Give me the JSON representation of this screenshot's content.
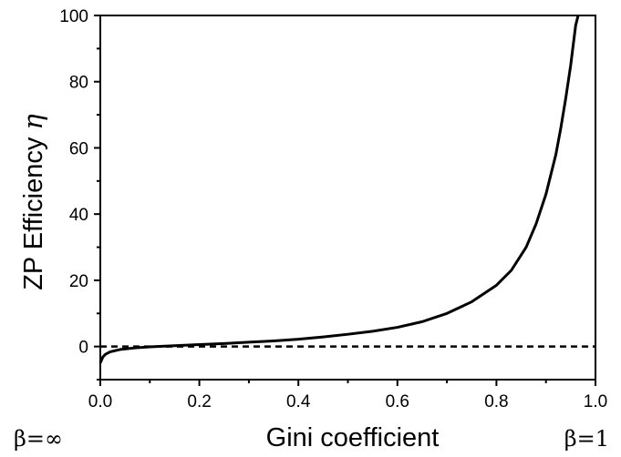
{
  "chart_data": {
    "type": "line",
    "xlabel": "Gini coefficient",
    "ylabel": "ZP Efficiency",
    "ylabel_symbol": "η",
    "xlim": [
      0.0,
      1.0
    ],
    "ylim": [
      -10,
      100
    ],
    "xticks": [
      "0.0",
      "0.2",
      "0.4",
      "0.6",
      "0.8",
      "1.0"
    ],
    "yticks": [
      "0",
      "20",
      "40",
      "60",
      "80",
      "100"
    ],
    "annotations": {
      "left": "β=∞",
      "right": "β=1"
    },
    "grid": false,
    "series": [
      {
        "style": "solid",
        "color": "#000000",
        "x": [
          0.0,
          0.005,
          0.01,
          0.02,
          0.04,
          0.07,
          0.1,
          0.13,
          0.16,
          0.2,
          0.25,
          0.3,
          0.35,
          0.4,
          0.45,
          0.5,
          0.55,
          0.6,
          0.65,
          0.7,
          0.75,
          0.8,
          0.83,
          0.86,
          0.88,
          0.9,
          0.92,
          0.93,
          0.94,
          0.95,
          0.955,
          0.96,
          0.965
        ],
        "y": [
          -5.0,
          -3.2,
          -2.4,
          -1.6,
          -0.9,
          -0.4,
          -0.1,
          0.1,
          0.3,
          0.6,
          0.9,
          1.3,
          1.7,
          2.2,
          2.9,
          3.7,
          4.6,
          5.8,
          7.5,
          10.0,
          13.5,
          18.5,
          23.0,
          30.0,
          37.0,
          46.0,
          58.0,
          66.0,
          75.0,
          85.0,
          91.0,
          97.0,
          100.0
        ]
      },
      {
        "style": "dashed",
        "color": "#000000",
        "x": [
          0.0,
          1.0
        ],
        "y": [
          0,
          0
        ]
      }
    ]
  }
}
